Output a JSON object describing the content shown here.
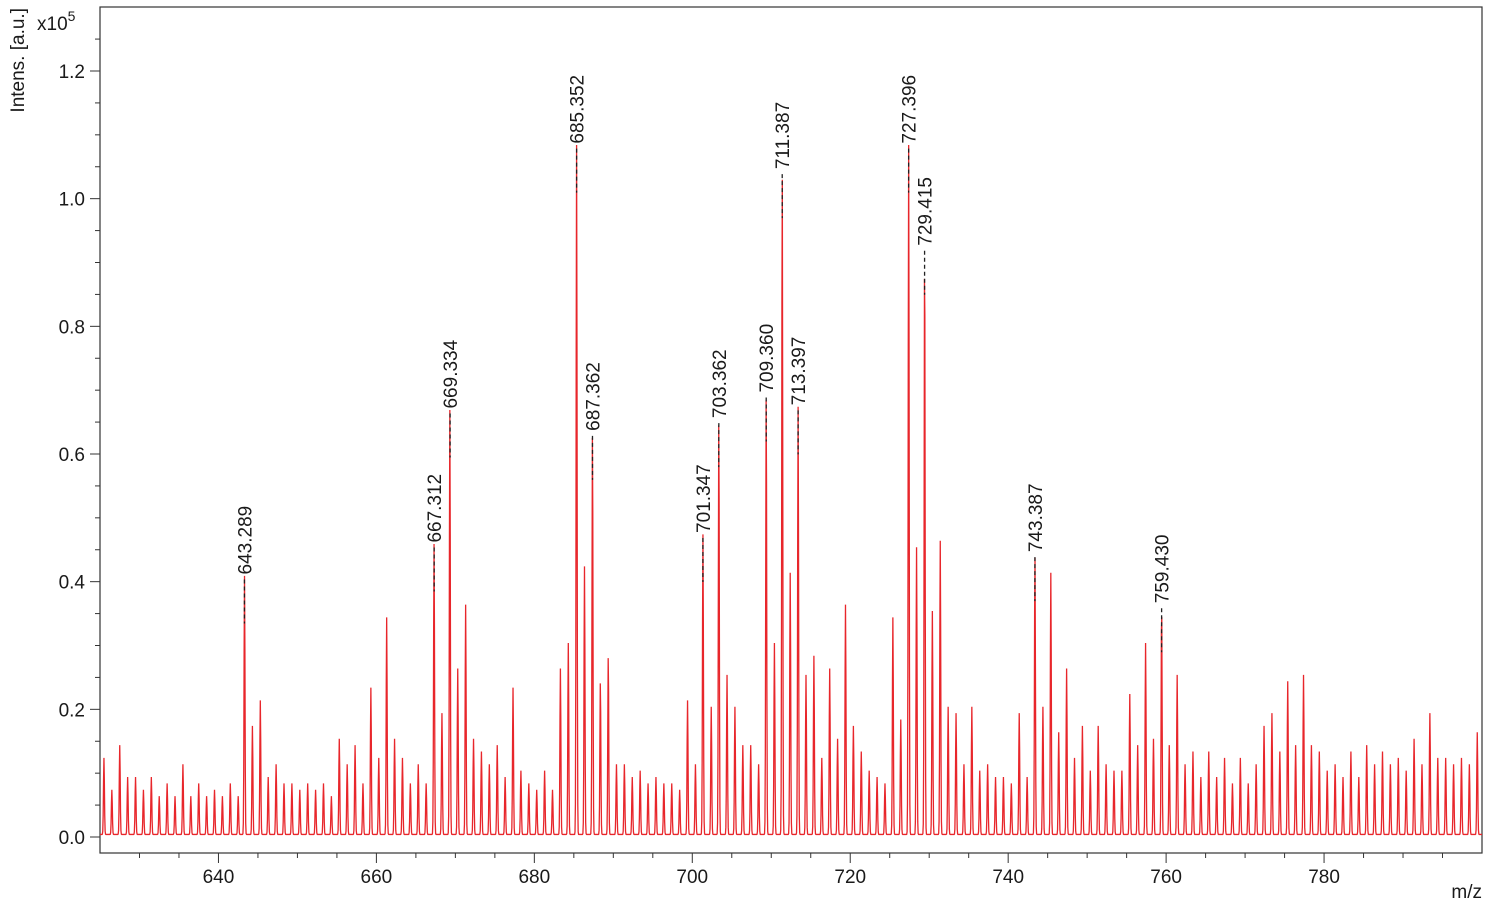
{
  "chart_data": {
    "type": "line",
    "title": "",
    "xlabel": "m/z",
    "ylabel": "Intens. [a.u.]",
    "y_scale_label": "x10",
    "y_scale_exponent": "5",
    "xlim": [
      625,
      800
    ],
    "ylim": [
      0,
      1.25
    ],
    "x_ticks": [
      640,
      660,
      680,
      700,
      720,
      740,
      760,
      780
    ],
    "x_tick_labels": [
      "640",
      "660",
      "680",
      "700",
      "720",
      "740",
      "760",
      "780"
    ],
    "y_ticks": [
      0.0,
      0.2,
      0.4,
      0.6,
      0.8,
      1.0,
      1.2
    ],
    "y_tick_labels": [
      "0.0",
      "0.2",
      "0.4",
      "0.6",
      "0.8",
      "1.0",
      "1.2"
    ],
    "grid": false,
    "line_color": "#e8262b",
    "labeled_peaks": [
      {
        "mz": 643.289,
        "label": "643.289",
        "intensity": 0.405
      },
      {
        "mz": 667.312,
        "label": "667.312",
        "intensity": 0.455
      },
      {
        "mz": 669.334,
        "label": "669.334",
        "intensity": 0.665
      },
      {
        "mz": 685.352,
        "label": "685.352",
        "intensity": 1.08
      },
      {
        "mz": 687.362,
        "label": "687.362",
        "intensity": 0.63
      },
      {
        "mz": 701.347,
        "label": "701.347",
        "intensity": 0.47
      },
      {
        "mz": 703.362,
        "label": "703.362",
        "intensity": 0.65
      },
      {
        "mz": 709.36,
        "label": "709.360",
        "intensity": 0.69
      },
      {
        "mz": 711.387,
        "label": "711.387",
        "intensity": 1.04
      },
      {
        "mz": 713.397,
        "label": "713.397",
        "intensity": 0.67
      },
      {
        "mz": 727.396,
        "label": "727.396",
        "intensity": 1.08
      },
      {
        "mz": 729.415,
        "label": "729.415",
        "intensity": 0.92
      },
      {
        "mz": 743.387,
        "label": "743.387",
        "intensity": 0.44
      },
      {
        "mz": 759.43,
        "label": "759.430",
        "intensity": 0.36
      }
    ],
    "peaks": [
      [
        625.5,
        0.12
      ],
      [
        626.5,
        0.07
      ],
      [
        627.5,
        0.14
      ],
      [
        628.5,
        0.09
      ],
      [
        629.5,
        0.09
      ],
      [
        630.5,
        0.07
      ],
      [
        631.5,
        0.09
      ],
      [
        632.5,
        0.06
      ],
      [
        633.5,
        0.08
      ],
      [
        634.5,
        0.06
      ],
      [
        635.5,
        0.11
      ],
      [
        636.5,
        0.06
      ],
      [
        637.5,
        0.08
      ],
      [
        638.5,
        0.06
      ],
      [
        639.5,
        0.07
      ],
      [
        640.5,
        0.06
      ],
      [
        641.5,
        0.08
      ],
      [
        642.5,
        0.06
      ],
      [
        643.3,
        0.405
      ],
      [
        644.3,
        0.17
      ],
      [
        645.3,
        0.21
      ],
      [
        646.3,
        0.09
      ],
      [
        647.3,
        0.11
      ],
      [
        648.3,
        0.08
      ],
      [
        649.3,
        0.08
      ],
      [
        650.3,
        0.07
      ],
      [
        651.3,
        0.08
      ],
      [
        652.3,
        0.07
      ],
      [
        653.3,
        0.08
      ],
      [
        654.3,
        0.06
      ],
      [
        655.3,
        0.15
      ],
      [
        656.3,
        0.11
      ],
      [
        657.3,
        0.14
      ],
      [
        658.3,
        0.08
      ],
      [
        659.3,
        0.23
      ],
      [
        660.3,
        0.12
      ],
      [
        661.3,
        0.34
      ],
      [
        662.3,
        0.15
      ],
      [
        663.3,
        0.12
      ],
      [
        664.3,
        0.08
      ],
      [
        665.3,
        0.11
      ],
      [
        666.3,
        0.08
      ],
      [
        667.3,
        0.455
      ],
      [
        668.3,
        0.19
      ],
      [
        669.3,
        0.665
      ],
      [
        670.3,
        0.26
      ],
      [
        671.3,
        0.36
      ],
      [
        672.3,
        0.15
      ],
      [
        673.3,
        0.13
      ],
      [
        674.3,
        0.11
      ],
      [
        675.3,
        0.14
      ],
      [
        676.3,
        0.09
      ],
      [
        677.3,
        0.23
      ],
      [
        678.3,
        0.1
      ],
      [
        679.3,
        0.08
      ],
      [
        680.3,
        0.07
      ],
      [
        681.3,
        0.1
      ],
      [
        682.3,
        0.07
      ],
      [
        683.3,
        0.26
      ],
      [
        684.3,
        0.3
      ],
      [
        685.35,
        1.08
      ],
      [
        686.35,
        0.42
      ],
      [
        687.36,
        0.63
      ],
      [
        688.36,
        0.24
      ],
      [
        689.36,
        0.28
      ],
      [
        690.4,
        0.11
      ],
      [
        691.4,
        0.11
      ],
      [
        692.4,
        0.09
      ],
      [
        693.4,
        0.1
      ],
      [
        694.4,
        0.08
      ],
      [
        695.4,
        0.09
      ],
      [
        696.4,
        0.08
      ],
      [
        697.4,
        0.08
      ],
      [
        698.4,
        0.07
      ],
      [
        699.4,
        0.21
      ],
      [
        700.4,
        0.11
      ],
      [
        701.35,
        0.47
      ],
      [
        702.4,
        0.2
      ],
      [
        703.36,
        0.65
      ],
      [
        704.4,
        0.25
      ],
      [
        705.4,
        0.2
      ],
      [
        706.4,
        0.14
      ],
      [
        707.4,
        0.14
      ],
      [
        708.4,
        0.11
      ],
      [
        709.36,
        0.69
      ],
      [
        710.4,
        0.3
      ],
      [
        711.39,
        1.04
      ],
      [
        712.4,
        0.41
      ],
      [
        713.4,
        0.67
      ],
      [
        714.4,
        0.25
      ],
      [
        715.4,
        0.28
      ],
      [
        716.4,
        0.12
      ],
      [
        717.4,
        0.26
      ],
      [
        718.4,
        0.15
      ],
      [
        719.4,
        0.36
      ],
      [
        720.4,
        0.17
      ],
      [
        721.4,
        0.13
      ],
      [
        722.4,
        0.1
      ],
      [
        723.4,
        0.09
      ],
      [
        724.4,
        0.08
      ],
      [
        725.4,
        0.34
      ],
      [
        726.4,
        0.18
      ],
      [
        727.4,
        1.08
      ],
      [
        728.4,
        0.45
      ],
      [
        729.42,
        0.92
      ],
      [
        730.4,
        0.35
      ],
      [
        731.4,
        0.46
      ],
      [
        732.4,
        0.2
      ],
      [
        733.4,
        0.19
      ],
      [
        734.4,
        0.11
      ],
      [
        735.4,
        0.2
      ],
      [
        736.4,
        0.1
      ],
      [
        737.4,
        0.11
      ],
      [
        738.4,
        0.09
      ],
      [
        739.4,
        0.09
      ],
      [
        740.4,
        0.08
      ],
      [
        741.4,
        0.19
      ],
      [
        742.4,
        0.09
      ],
      [
        743.39,
        0.44
      ],
      [
        744.4,
        0.2
      ],
      [
        745.4,
        0.41
      ],
      [
        746.4,
        0.16
      ],
      [
        747.4,
        0.26
      ],
      [
        748.4,
        0.12
      ],
      [
        749.4,
        0.17
      ],
      [
        750.4,
        0.1
      ],
      [
        751.4,
        0.17
      ],
      [
        752.4,
        0.11
      ],
      [
        753.4,
        0.1
      ],
      [
        754.4,
        0.1
      ],
      [
        755.4,
        0.22
      ],
      [
        756.4,
        0.14
      ],
      [
        757.4,
        0.3
      ],
      [
        758.4,
        0.15
      ],
      [
        759.43,
        0.36
      ],
      [
        760.4,
        0.14
      ],
      [
        761.4,
        0.25
      ],
      [
        762.4,
        0.11
      ],
      [
        763.4,
        0.13
      ],
      [
        764.4,
        0.09
      ],
      [
        765.4,
        0.13
      ],
      [
        766.4,
        0.09
      ],
      [
        767.4,
        0.12
      ],
      [
        768.4,
        0.08
      ],
      [
        769.4,
        0.12
      ],
      [
        770.4,
        0.08
      ],
      [
        771.4,
        0.11
      ],
      [
        772.4,
        0.17
      ],
      [
        773.4,
        0.19
      ],
      [
        774.4,
        0.13
      ],
      [
        775.4,
        0.24
      ],
      [
        776.4,
        0.14
      ],
      [
        777.4,
        0.25
      ],
      [
        778.4,
        0.14
      ],
      [
        779.4,
        0.13
      ],
      [
        780.4,
        0.1
      ],
      [
        781.4,
        0.11
      ],
      [
        782.4,
        0.09
      ],
      [
        783.4,
        0.13
      ],
      [
        784.4,
        0.09
      ],
      [
        785.4,
        0.14
      ],
      [
        786.4,
        0.11
      ],
      [
        787.4,
        0.13
      ],
      [
        788.4,
        0.11
      ],
      [
        789.4,
        0.12
      ],
      [
        790.4,
        0.1
      ],
      [
        791.4,
        0.15
      ],
      [
        792.4,
        0.11
      ],
      [
        793.4,
        0.19
      ],
      [
        794.4,
        0.12
      ],
      [
        795.4,
        0.12
      ],
      [
        796.4,
        0.11
      ],
      [
        797.4,
        0.12
      ],
      [
        798.4,
        0.11
      ],
      [
        799.4,
        0.16
      ]
    ]
  }
}
